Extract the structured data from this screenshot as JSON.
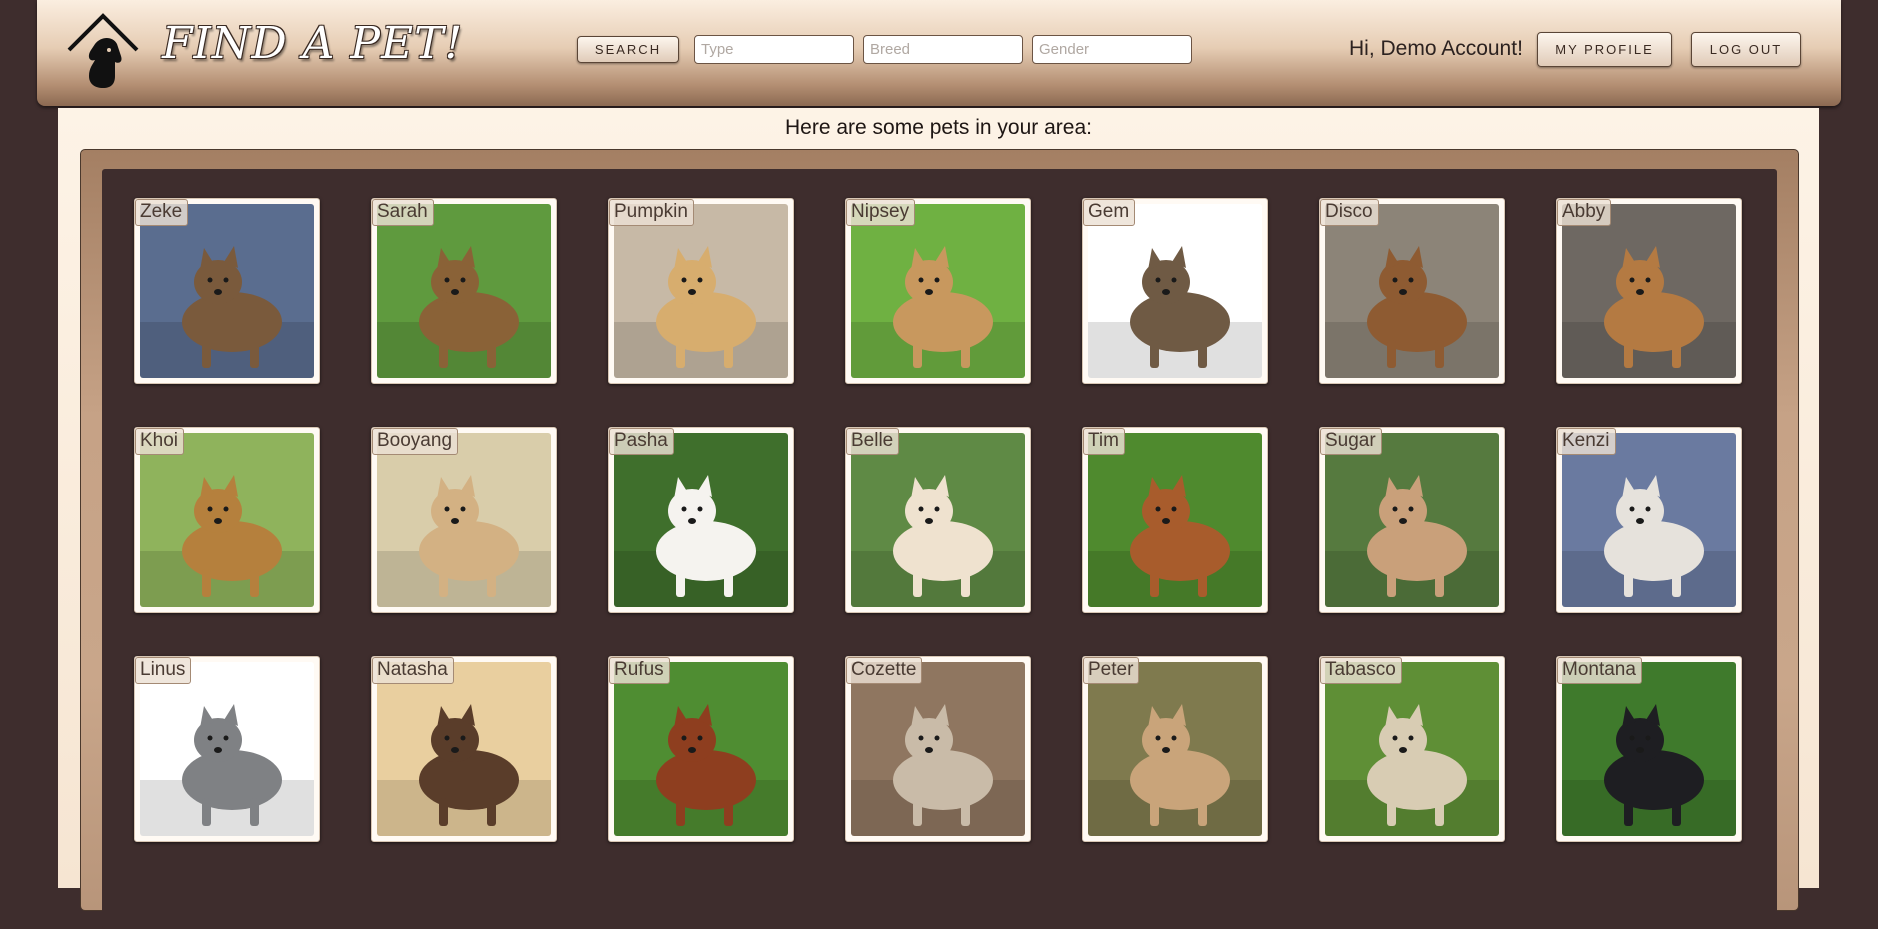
{
  "header": {
    "brand": "FIND A PET!",
    "search_button": "SEARCH",
    "type_placeholder": "Type",
    "breed_placeholder": "Breed",
    "gender_placeholder": "Gender",
    "greeting": "Hi, Demo Account!",
    "profile_button": "MY PROFILE",
    "logout_button": "LOG OUT",
    "logo_icon": "house-dog-logo-icon"
  },
  "main": {
    "subtitle": "Here are some pets in your area:"
  },
  "pets": [
    {
      "name": "Zeke",
      "bg": "#5a6d8f",
      "animal": "#7a5a3c"
    },
    {
      "name": "Sarah",
      "bg": "#5f9a3e",
      "animal": "#8a6237"
    },
    {
      "name": "Pumpkin",
      "bg": "#c7b9a6",
      "animal": "#d7ad6e"
    },
    {
      "name": "Nipsey",
      "bg": "#6fb142",
      "animal": "#c8985e"
    },
    {
      "name": "Gem",
      "bg": "#ffffff",
      "animal": "#6f5a44"
    },
    {
      "name": "Disco",
      "bg": "#8c8478",
      "animal": "#8e5b32"
    },
    {
      "name": "Abby",
      "bg": "#6e6862",
      "animal": "#b47a42"
    },
    {
      "name": "Khoi",
      "bg": "#8fb35c",
      "animal": "#b5803d"
    },
    {
      "name": "Booyang",
      "bg": "#d9cdaa",
      "animal": "#d3b183"
    },
    {
      "name": "Pasha",
      "bg": "#3f6f2c",
      "animal": "#f5f3ef"
    },
    {
      "name": "Belle",
      "bg": "#5f8a45",
      "animal": "#efe2cf"
    },
    {
      "name": "Tim",
      "bg": "#4f8a2e",
      "animal": "#a85c2c"
    },
    {
      "name": "Sugar",
      "bg": "#567a3f",
      "animal": "#c9a07a"
    },
    {
      "name": "Kenzi",
      "bg": "#6a7aa0",
      "animal": "#e6e2dc"
    },
    {
      "name": "Linus",
      "bg": "#ffffff",
      "animal": "#7f8184"
    },
    {
      "name": "Natasha",
      "bg": "#e9cf9f",
      "animal": "#5a3d2a"
    },
    {
      "name": "Rufus",
      "bg": "#4f8d32",
      "animal": "#8e3e1f"
    },
    {
      "name": "Cozette",
      "bg": "#8f7660",
      "animal": "#c9bba8"
    },
    {
      "name": "Peter",
      "bg": "#7f7a4e",
      "animal": "#c9a47a"
    },
    {
      "name": "Tabasco",
      "bg": "#5f8f36",
      "animal": "#d8ccb3"
    },
    {
      "name": "Montana",
      "bg": "#3f7a2c",
      "animal": "#1e1e22"
    }
  ]
}
